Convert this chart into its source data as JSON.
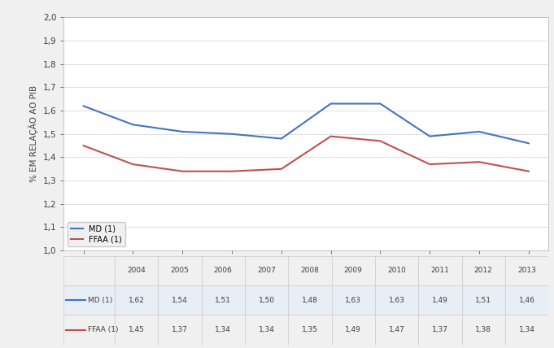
{
  "years": [
    2004,
    2005,
    2006,
    2007,
    2008,
    2009,
    2010,
    2011,
    2012,
    2013
  ],
  "md": [
    1.62,
    1.54,
    1.51,
    1.5,
    1.48,
    1.63,
    1.63,
    1.49,
    1.51,
    1.46
  ],
  "ffaa": [
    1.45,
    1.37,
    1.34,
    1.34,
    1.35,
    1.49,
    1.47,
    1.37,
    1.38,
    1.34
  ],
  "md_color": "#4472C4",
  "ffaa_color": "#C0504D",
  "ylabel": "% EM RELAÇÃO AO PIB",
  "ylim": [
    1.0,
    2.0
  ],
  "yticks": [
    1.0,
    1.1,
    1.2,
    1.3,
    1.4,
    1.5,
    1.6,
    1.7,
    1.8,
    1.9,
    2.0
  ],
  "legend_md": "MD (1)",
  "legend_ffaa": "FFAA (1)",
  "table_header": [
    "2004",
    "2005",
    "2006",
    "2007",
    "2008",
    "2009",
    "2010",
    "2011",
    "2012",
    "2013"
  ],
  "table_md": [
    "1,62",
    "1,54",
    "1,51",
    "1,50",
    "1,48",
    "1,63",
    "1,63",
    "1,49",
    "1,51",
    "1,46"
  ],
  "table_ffaa": [
    "1,45",
    "1,37",
    "1,34",
    "1,34",
    "1,35",
    "1,49",
    "1,47",
    "1,37",
    "1,38",
    "1,34"
  ],
  "background_color": "#F0F0F0",
  "plot_bg_color": "#FFFFFF",
  "line_width": 1.5,
  "grid_color": "#E0E0E0"
}
